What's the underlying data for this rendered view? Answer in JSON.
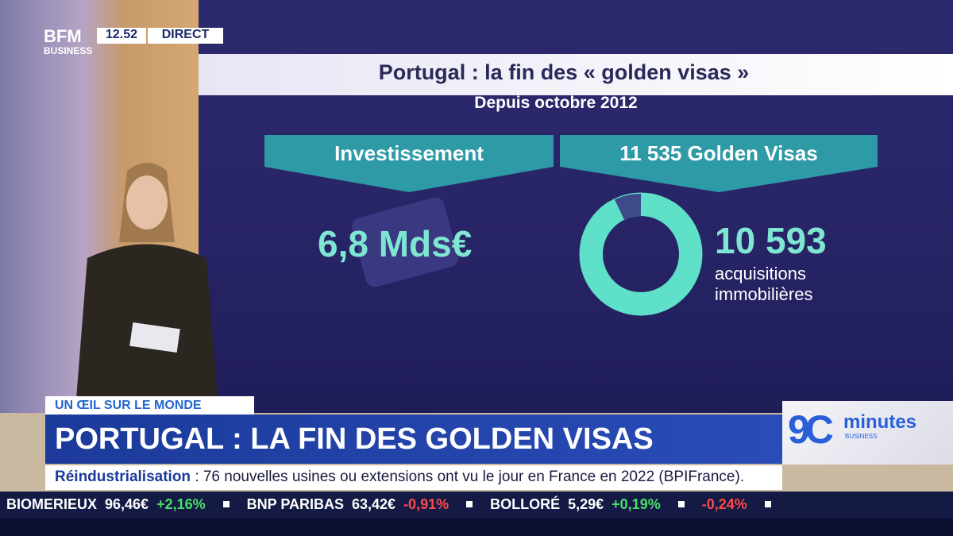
{
  "logo": {
    "brand": "BFM",
    "sub": "BUSINESS"
  },
  "clock": {
    "time": "12.52",
    "status": "DIRECT"
  },
  "graphic": {
    "title": "Portugal : la fin des « golden visas »",
    "subtitle": "Depuis octobre 2012",
    "left": {
      "header": "Investissement",
      "value": "6,8 Mds€"
    },
    "right": {
      "header": "11 535 Golden Visas",
      "value": "10 593",
      "line1": "acquisitions",
      "line2": "immobilières"
    }
  },
  "lower_third": {
    "kicker": "UN ŒIL SUR LE MONDE",
    "headline": "PORTUGAL : LA FIN DES GOLDEN VISAS"
  },
  "show_logo": {
    "number": "9C",
    "word": "minutes",
    "sub": "BUSINESS"
  },
  "news_ticker": {
    "topic": "Réindustrialisation",
    "text": ": 76 nouvelles usines ou extensions ont vu le jour en France en 2022 (BPIFrance)."
  },
  "stock_ticker": [
    {
      "name": "BIOMERIEUX",
      "price": "96,46€",
      "change": "+2,16%"
    },
    {
      "name": "BNP PARIBAS",
      "price": "63,42€",
      "change": "-0,91%"
    },
    {
      "name": "BOLLORÉ",
      "price": "5,29€",
      "change": "+0,19%"
    },
    {
      "name": "",
      "price": "",
      "change": "-0,24%"
    }
  ]
}
